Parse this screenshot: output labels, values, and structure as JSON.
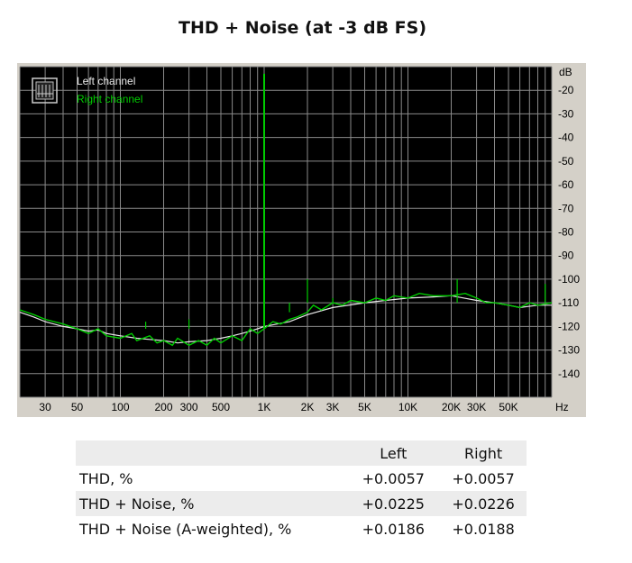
{
  "page": {
    "title": "THD + Noise (at -3 dB FS)"
  },
  "chart_data": {
    "type": "line",
    "title": "",
    "xlabel": "Hz",
    "ylabel": "dB",
    "x_scale": "log",
    "xlim": [
      20,
      100000
    ],
    "ylim": [
      -150,
      -10
    ],
    "grid": true,
    "legend_position": "top-left",
    "x_tick_labels": [
      {
        "label": "30",
        "value": 30
      },
      {
        "label": "50",
        "value": 50
      },
      {
        "label": "100",
        "value": 100
      },
      {
        "label": "200",
        "value": 200
      },
      {
        "label": "300",
        "value": 300
      },
      {
        "label": "500",
        "value": 500
      },
      {
        "label": "1K",
        "value": 1000
      },
      {
        "label": "2K",
        "value": 2000
      },
      {
        "label": "3K",
        "value": 3000
      },
      {
        "label": "5K",
        "value": 5000
      },
      {
        "label": "10K",
        "value": 10000
      },
      {
        "label": "20K",
        "value": 20000
      },
      {
        "label": "30K",
        "value": 30000
      },
      {
        "label": "50K",
        "value": 50000
      }
    ],
    "y_tick_labels": [
      {
        "label": "-20",
        "value": -20
      },
      {
        "label": "-30",
        "value": -30
      },
      {
        "label": "-40",
        "value": -40
      },
      {
        "label": "-50",
        "value": -50
      },
      {
        "label": "-60",
        "value": -60
      },
      {
        "label": "-70",
        "value": -70
      },
      {
        "label": "-80",
        "value": -80
      },
      {
        "label": "-90",
        "value": -90
      },
      {
        "label": "-100",
        "value": -100
      },
      {
        "label": "-110",
        "value": -110
      },
      {
        "label": "-120",
        "value": -120
      },
      {
        "label": "-130",
        "value": -130
      },
      {
        "label": "-140",
        "value": -140
      }
    ],
    "series": [
      {
        "name": "Left channel",
        "color": "#e8e8e8",
        "points": [
          [
            20,
            -114
          ],
          [
            25,
            -116
          ],
          [
            30,
            -118
          ],
          [
            40,
            -120
          ],
          [
            50,
            -121
          ],
          [
            60,
            -122
          ],
          [
            70,
            -121.5
          ],
          [
            80,
            -123
          ],
          [
            100,
            -124
          ],
          [
            130,
            -125
          ],
          [
            160,
            -125.5
          ],
          [
            200,
            -126
          ],
          [
            250,
            -127
          ],
          [
            300,
            -126.5
          ],
          [
            400,
            -126
          ],
          [
            500,
            -125
          ],
          [
            600,
            -124
          ],
          [
            700,
            -123
          ],
          [
            800,
            -122
          ],
          [
            900,
            -121
          ],
          [
            1000,
            -120
          ],
          [
            1500,
            -118
          ],
          [
            2000,
            -115
          ],
          [
            3000,
            -112
          ],
          [
            5000,
            -110
          ],
          [
            7000,
            -109
          ],
          [
            10000,
            -108
          ],
          [
            15000,
            -107.5
          ],
          [
            20000,
            -107
          ],
          [
            30000,
            -109
          ],
          [
            40000,
            -110
          ],
          [
            50000,
            -111
          ],
          [
            60000,
            -112
          ],
          [
            80000,
            -111
          ],
          [
            100000,
            -111
          ]
        ]
      },
      {
        "name": "Right channel",
        "color": "#00cc00",
        "points": [
          [
            20,
            -113
          ],
          [
            25,
            -115
          ],
          [
            30,
            -117
          ],
          [
            40,
            -119
          ],
          [
            50,
            -121
          ],
          [
            60,
            -123
          ],
          [
            70,
            -121
          ],
          [
            80,
            -124
          ],
          [
            100,
            -125
          ],
          [
            120,
            -123
          ],
          [
            130,
            -126
          ],
          [
            160,
            -124
          ],
          [
            180,
            -127
          ],
          [
            200,
            -126
          ],
          [
            230,
            -128
          ],
          [
            250,
            -125
          ],
          [
            300,
            -128
          ],
          [
            350,
            -126
          ],
          [
            400,
            -128
          ],
          [
            450,
            -125
          ],
          [
            500,
            -127
          ],
          [
            600,
            -124
          ],
          [
            700,
            -126
          ],
          [
            800,
            -121
          ],
          [
            900,
            -123
          ],
          [
            1000,
            -121
          ],
          [
            1150,
            -118
          ],
          [
            1300,
            -119
          ],
          [
            1500,
            -117
          ],
          [
            1700,
            -116
          ],
          [
            2000,
            -114
          ],
          [
            2200,
            -111
          ],
          [
            2500,
            -113
          ],
          [
            3000,
            -110
          ],
          [
            3500,
            -111
          ],
          [
            4000,
            -109
          ],
          [
            5000,
            -110
          ],
          [
            6000,
            -108
          ],
          [
            7000,
            -109
          ],
          [
            8000,
            -107
          ],
          [
            10000,
            -108
          ],
          [
            12000,
            -106
          ],
          [
            15000,
            -107
          ],
          [
            20000,
            -107
          ],
          [
            25000,
            -106
          ],
          [
            30000,
            -108
          ],
          [
            35000,
            -110
          ],
          [
            40000,
            -110
          ],
          [
            50000,
            -111
          ],
          [
            60000,
            -112
          ],
          [
            70000,
            -110
          ],
          [
            80000,
            -111
          ],
          [
            100000,
            -110
          ]
        ]
      }
    ],
    "spikes": [
      {
        "x": 1000,
        "y": -13
      },
      {
        "x": 2000,
        "y": -100
      },
      {
        "x": 3000,
        "y": -108
      },
      {
        "x": 22000,
        "y": -100
      },
      {
        "x": 90000,
        "y": -102
      },
      {
        "x": 150,
        "y": -118
      },
      {
        "x": 300,
        "y": -117
      },
      {
        "x": 1500,
        "y": -114
      }
    ]
  },
  "results_table": {
    "headers": [
      "",
      "Left",
      "Right"
    ],
    "rows": [
      {
        "label": "THD, %",
        "left": "+0.0057",
        "right": "+0.0057"
      },
      {
        "label": "THD + Noise, %",
        "left": "+0.0225",
        "right": "+0.0226"
      },
      {
        "label": "THD + Noise (A-weighted), %",
        "left": "+0.0186",
        "right": "+0.0188"
      }
    ]
  }
}
